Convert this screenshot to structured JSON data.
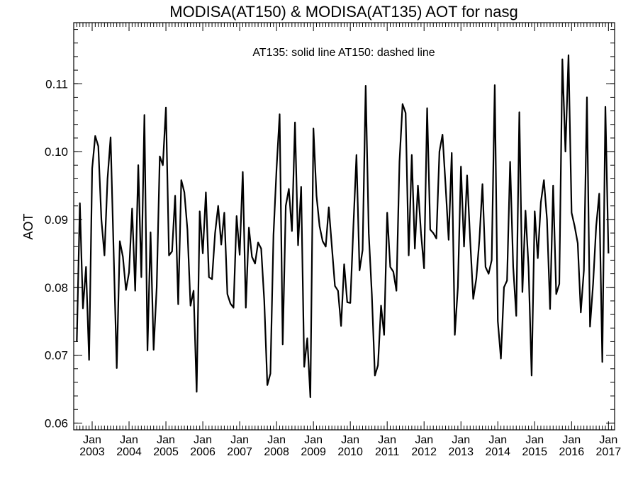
{
  "chart_data": {
    "type": "line",
    "title": "MODISA(AT150) & MODISA(AT135)  AOT for nasg",
    "annotation": "AT135: solid line   AT150: dashed line",
    "ylabel": "AOT",
    "xlabel": "",
    "x_axis": "months, Aug 2002 – Feb 2017",
    "xlim": [
      "2002-07",
      "2017-03"
    ],
    "ylim": [
      0.059,
      0.119
    ],
    "yticks": [
      0.06,
      0.07,
      0.08,
      0.09,
      0.1,
      0.11
    ],
    "ytick_labels": [
      "0.06",
      "0.07",
      "0.08",
      "0.09",
      "0.10",
      "0.11"
    ],
    "xtick_month_label": "Jan",
    "xticks": [
      "2003",
      "2004",
      "2005",
      "2006",
      "2007",
      "2008",
      "2009",
      "2010",
      "2011",
      "2012",
      "2013",
      "2014",
      "2015",
      "2016",
      "2017"
    ],
    "grid": false,
    "line_color": "#000000",
    "series": [
      {
        "name": "AT135",
        "style": "solid",
        "x_start": "2002-08",
        "values": [
          0.072,
          0.0924,
          0.0769,
          0.083,
          0.0693,
          0.0975,
          0.1023,
          0.1008,
          0.09,
          0.0847,
          0.096,
          0.1021,
          0.085,
          0.0681,
          0.0868,
          0.0845,
          0.0796,
          0.0822,
          0.0916,
          0.0795,
          0.098,
          0.0815,
          0.1054,
          0.0707,
          0.0881,
          0.0708,
          0.08,
          0.0993,
          0.098,
          0.1065,
          0.0847,
          0.0853,
          0.0935,
          0.0775,
          0.0958,
          0.094,
          0.0885,
          0.0773,
          0.0795,
          0.0646,
          0.0912,
          0.085,
          0.094,
          0.0815,
          0.0812,
          0.088,
          0.092,
          0.0863,
          0.091,
          0.079,
          0.0776,
          0.077,
          0.0905,
          0.0848,
          0.097,
          0.077,
          0.0888,
          0.0845,
          0.0835,
          0.0866,
          0.0857,
          0.078,
          0.0656,
          0.0673,
          0.0877,
          0.0975,
          0.1055,
          0.0716,
          0.092,
          0.0945,
          0.0883,
          0.1043,
          0.0862,
          0.0948,
          0.0683,
          0.0725,
          0.0638,
          0.1034,
          0.0935,
          0.089,
          0.0868,
          0.086,
          0.0918,
          0.086,
          0.0802,
          0.0795,
          0.0743,
          0.0834,
          0.0778,
          0.0777,
          0.089,
          0.0995,
          0.0825,
          0.0855,
          0.1097,
          0.088,
          0.079,
          0.067,
          0.0685,
          0.0773,
          0.073,
          0.091,
          0.083,
          0.0823,
          0.0795,
          0.0985,
          0.107,
          0.1057,
          0.0847,
          0.0995,
          0.0857,
          0.095,
          0.088,
          0.0828,
          0.1064,
          0.0885,
          0.088,
          0.0872,
          0.1,
          0.1025,
          0.095,
          0.087,
          0.0998,
          0.073,
          0.08,
          0.0978,
          0.086,
          0.0965,
          0.087,
          0.0783,
          0.0813,
          0.087,
          0.0952,
          0.083,
          0.082,
          0.084,
          0.1098,
          0.075,
          0.0695,
          0.08,
          0.081,
          0.0985,
          0.083,
          0.0758,
          0.1058,
          0.0793,
          0.0913,
          0.083,
          0.067,
          0.0912,
          0.0843,
          0.0925,
          0.0958,
          0.09,
          0.0768,
          0.095,
          0.079,
          0.0805,
          0.1136,
          0.1,
          0.1142,
          0.091,
          0.089,
          0.0865,
          0.0763,
          0.0825,
          0.108,
          0.0742,
          0.0805,
          0.089,
          0.0938,
          0.069,
          0.1066,
          0.085
        ]
      }
    ]
  }
}
